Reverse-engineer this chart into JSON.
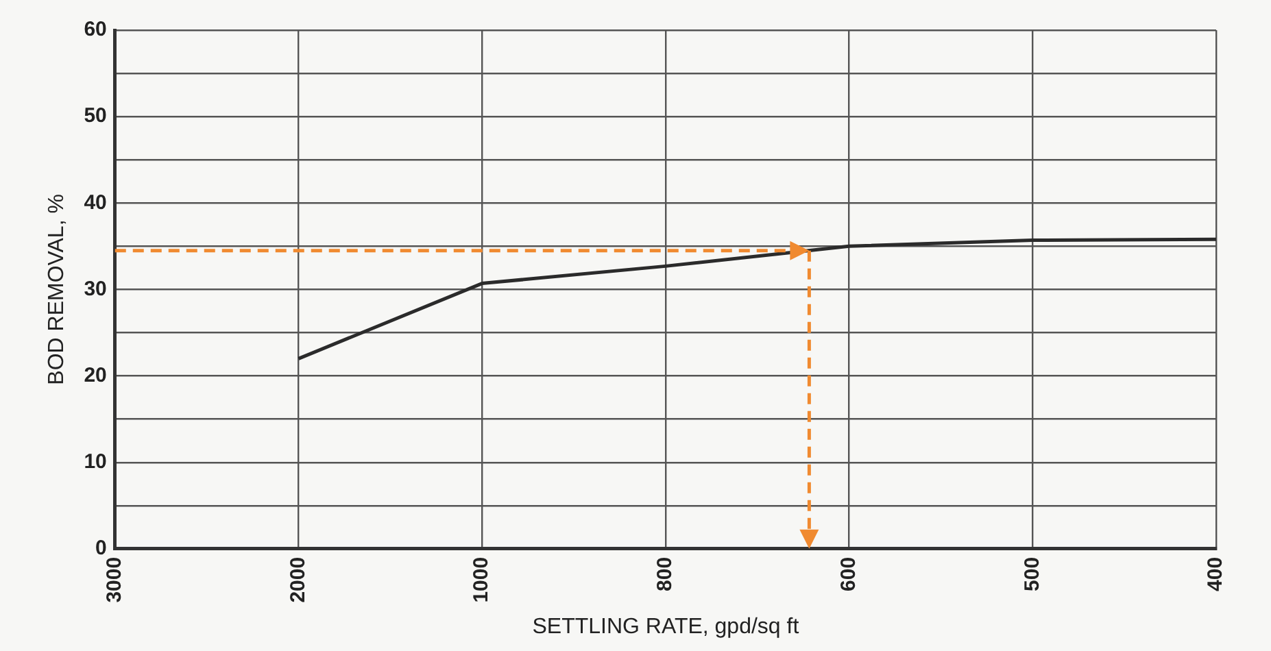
{
  "chart_data": {
    "type": "line",
    "xlabel": "SETTLING RATE, gpd/sq ft",
    "ylabel": "BOD REMOVAL, %",
    "categories": [
      "3000",
      "2000",
      "1000",
      "800",
      "600",
      "500",
      "400"
    ],
    "series": [
      {
        "color": "#2b2b2b",
        "values": [
          null,
          22,
          30.7,
          32.7,
          35,
          35.7,
          35.8
        ]
      }
    ],
    "ylim": [
      0,
      60
    ],
    "yticks": [
      0,
      {
        "value": 5,
        "label": null
      },
      10,
      {
        "value": 15,
        "label": null
      },
      20,
      {
        "value": 25,
        "label": null
      },
      30,
      {
        "value": 35,
        "label": null
      },
      40,
      {
        "value": 45,
        "label": null
      },
      50,
      {
        "value": 55,
        "label": null
      },
      60
    ],
    "ref_lines": [
      {
        "axis": "y",
        "value": 34.5,
        "color": "#f08a30",
        "line_style": "dashed"
      }
    ],
    "grid": true,
    "marker": "none",
    "line_style": "solid"
  }
}
